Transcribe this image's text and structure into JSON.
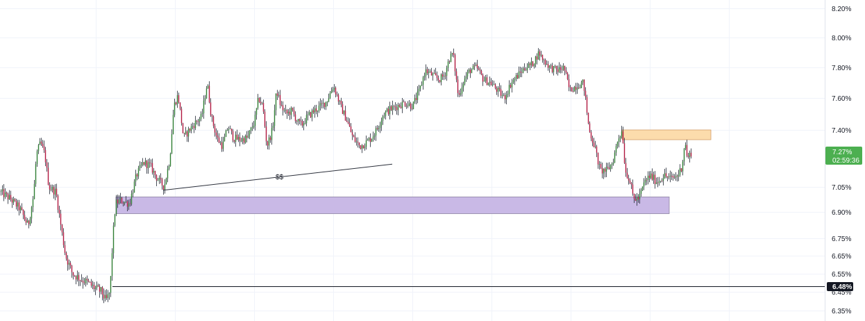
{
  "chart_data": {
    "type": "candlestick",
    "y_unit": "%",
    "ylim": [
      6.34,
      8.26
    ],
    "grid": true,
    "y_ticks": [
      "8.20%",
      "8.00%",
      "7.80%",
      "7.60%",
      "7.40%",
      "7.05%",
      "6.90%",
      "6.75%",
      "6.65%",
      "6.55%",
      "6.45%",
      "6.35%"
    ],
    "y_tick_values": [
      8.2,
      8.0,
      7.8,
      7.6,
      7.4,
      7.05,
      6.9,
      6.75,
      6.65,
      6.55,
      6.45,
      6.35
    ],
    "close_path": [
      [
        0,
        7.02
      ],
      [
        14,
        6.98
      ],
      [
        28,
        6.92
      ],
      [
        40,
        6.82
      ],
      [
        48,
        7.0
      ],
      [
        52,
        7.25
      ],
      [
        58,
        7.32
      ],
      [
        64,
        7.25
      ],
      [
        70,
        7.05
      ],
      [
        80,
        7.02
      ],
      [
        88,
        6.8
      ],
      [
        94,
        6.65
      ],
      [
        104,
        6.55
      ],
      [
        116,
        6.52
      ],
      [
        126,
        6.5
      ],
      [
        136,
        6.47
      ],
      [
        146,
        6.45
      ],
      [
        152,
        6.4
      ],
      [
        158,
        6.45
      ],
      [
        162,
        6.75
      ],
      [
        166,
        6.95
      ],
      [
        172,
        6.97
      ],
      [
        186,
        6.95
      ],
      [
        196,
        7.12
      ],
      [
        206,
        7.2
      ],
      [
        216,
        7.18
      ],
      [
        226,
        7.1
      ],
      [
        236,
        7.05
      ],
      [
        244,
        7.22
      ],
      [
        250,
        7.55
      ],
      [
        256,
        7.62
      ],
      [
        264,
        7.35
      ],
      [
        272,
        7.4
      ],
      [
        282,
        7.45
      ],
      [
        290,
        7.48
      ],
      [
        298,
        7.7
      ],
      [
        304,
        7.48
      ],
      [
        312,
        7.35
      ],
      [
        320,
        7.3
      ],
      [
        328,
        7.42
      ],
      [
        336,
        7.35
      ],
      [
        346,
        7.34
      ],
      [
        356,
        7.35
      ],
      [
        366,
        7.45
      ],
      [
        372,
        7.6
      ],
      [
        378,
        7.55
      ],
      [
        384,
        7.3
      ],
      [
        392,
        7.4
      ],
      [
        398,
        7.65
      ],
      [
        404,
        7.55
      ],
      [
        412,
        7.5
      ],
      [
        420,
        7.52
      ],
      [
        428,
        7.45
      ],
      [
        434,
        7.43
      ],
      [
        442,
        7.48
      ],
      [
        452,
        7.52
      ],
      [
        462,
        7.55
      ],
      [
        470,
        7.58
      ],
      [
        480,
        7.68
      ],
      [
        490,
        7.55
      ],
      [
        500,
        7.45
      ],
      [
        508,
        7.35
      ],
      [
        518,
        7.3
      ],
      [
        526,
        7.32
      ],
      [
        534,
        7.35
      ],
      [
        542,
        7.4
      ],
      [
        552,
        7.5
      ],
      [
        562,
        7.53
      ],
      [
        572,
        7.55
      ],
      [
        582,
        7.57
      ],
      [
        594,
        7.55
      ],
      [
        604,
        7.65
      ],
      [
        612,
        7.78
      ],
      [
        622,
        7.75
      ],
      [
        632,
        7.72
      ],
      [
        640,
        7.75
      ],
      [
        646,
        7.85
      ],
      [
        652,
        7.9
      ],
      [
        660,
        7.6
      ],
      [
        666,
        7.7
      ],
      [
        676,
        7.78
      ],
      [
        686,
        7.8
      ],
      [
        696,
        7.72
      ],
      [
        706,
        7.7
      ],
      [
        716,
        7.65
      ],
      [
        726,
        7.6
      ],
      [
        736,
        7.7
      ],
      [
        746,
        7.75
      ],
      [
        756,
        7.8
      ],
      [
        766,
        7.82
      ],
      [
        776,
        7.9
      ],
      [
        782,
        7.85
      ],
      [
        792,
        7.8
      ],
      [
        802,
        7.78
      ],
      [
        812,
        7.8
      ],
      [
        820,
        7.65
      ],
      [
        830,
        7.68
      ],
      [
        840,
        7.7
      ],
      [
        848,
        7.4
      ],
      [
        856,
        7.3
      ],
      [
        864,
        7.15
      ],
      [
        874,
        7.15
      ],
      [
        882,
        7.2
      ],
      [
        890,
        7.35
      ],
      [
        896,
        7.4
      ],
      [
        900,
        7.15
      ],
      [
        906,
        7.1
      ],
      [
        912,
        6.98
      ],
      [
        920,
        6.98
      ],
      [
        928,
        7.08
      ],
      [
        936,
        7.12
      ],
      [
        946,
        7.08
      ],
      [
        956,
        7.12
      ],
      [
        966,
        7.1
      ],
      [
        976,
        7.12
      ],
      [
        982,
        7.18
      ],
      [
        986,
        7.33
      ],
      [
        990,
        7.22
      ],
      [
        996,
        7.27
      ]
    ],
    "annotations": {
      "liquidity_label": "$$",
      "current_price_label": "7.27%",
      "countdown_label": "02:59:36",
      "horizontal_level_label": "6.48%",
      "horizontal_level_value": 6.48,
      "demand_zone": {
        "top": 6.99,
        "bottom": 6.89,
        "color": "#c9b9e6"
      },
      "supply_zone": {
        "top": 7.4,
        "bottom": 7.34,
        "color": "#fcdcac"
      },
      "trendline": {
        "from": [
          235,
          7.03
        ],
        "to": [
          565,
          7.19
        ]
      }
    },
    "colors": {
      "up": "#26a69a",
      "down": "#ef5350",
      "candle_body_up": "#2e7d32",
      "candle_body_down": "#b0173f",
      "wick": "#1e2530",
      "price_badge": "#4caf50",
      "level_badge": "#131722"
    }
  }
}
